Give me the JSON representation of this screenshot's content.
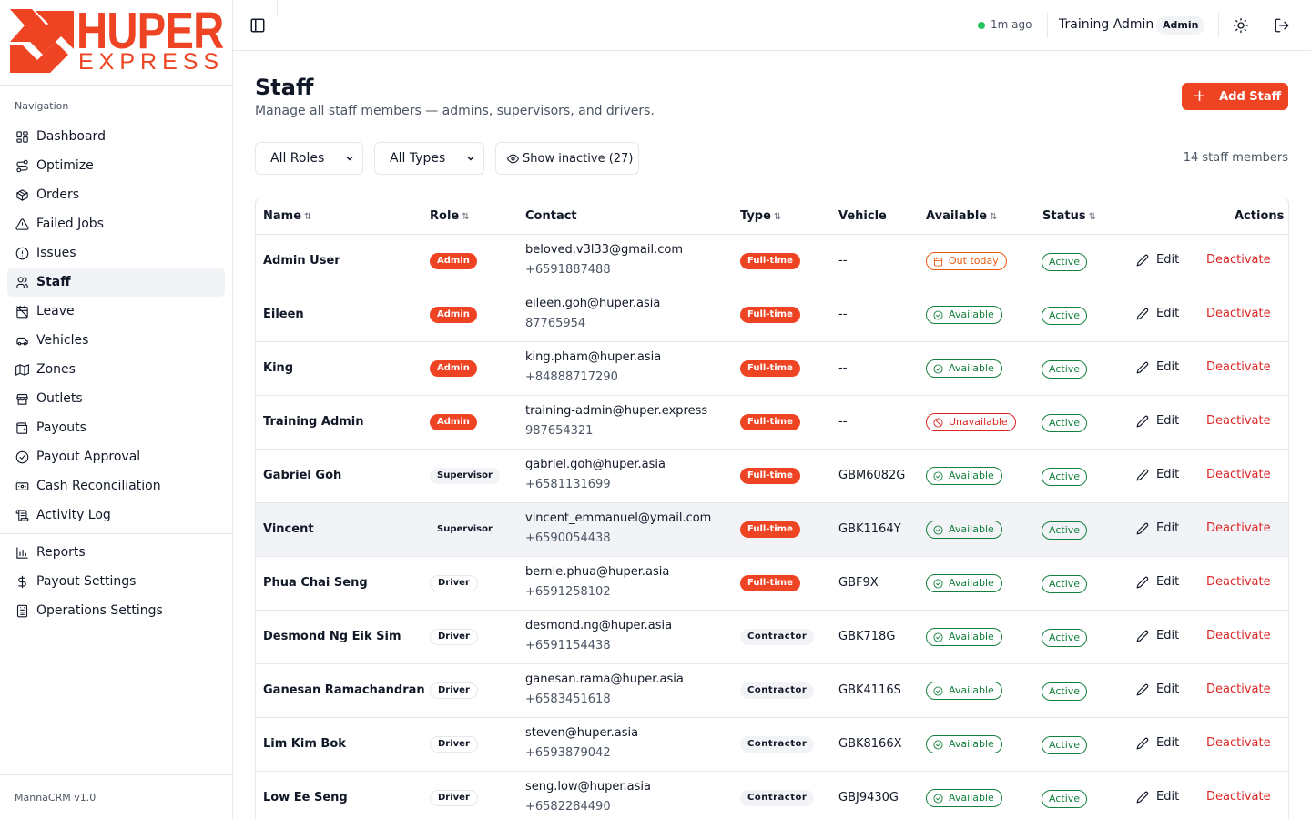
{
  "brand": {
    "logo_text_top": "HUPER",
    "logo_text_bottom": "EXPRESS",
    "accent_color": "#ee4423"
  },
  "sidebar": {
    "nav_title": "Navigation",
    "items": [
      {
        "label": "Dashboard",
        "icon": "layout-dashboard-icon"
      },
      {
        "label": "Optimize",
        "icon": "route-icon"
      },
      {
        "label": "Orders",
        "icon": "package-icon"
      },
      {
        "label": "Failed Jobs",
        "icon": "alert-triangle-icon"
      },
      {
        "label": "Issues",
        "icon": "alert-circle-icon"
      },
      {
        "label": "Staff",
        "icon": "users-icon",
        "active": true
      },
      {
        "label": "Leave",
        "icon": "calendar-off-icon"
      },
      {
        "label": "Vehicles",
        "icon": "car-icon"
      },
      {
        "label": "Zones",
        "icon": "map-icon"
      },
      {
        "label": "Outlets",
        "icon": "store-icon"
      },
      {
        "label": "Payouts",
        "icon": "wallet-icon"
      },
      {
        "label": "Payout Approval",
        "icon": "check-circle-icon"
      },
      {
        "label": "Cash Reconciliation",
        "icon": "banknote-icon"
      },
      {
        "label": "Activity Log",
        "icon": "scroll-icon"
      }
    ],
    "items2": [
      {
        "label": "Reports",
        "icon": "bar-chart-icon"
      },
      {
        "label": "Payout Settings",
        "icon": "dollar-icon"
      },
      {
        "label": "Operations Settings",
        "icon": "building-icon"
      }
    ],
    "footer": "MannaCRM v1.0"
  },
  "header": {
    "sync_status": "1m ago",
    "user_name": "Training Admin",
    "user_role": "Admin"
  },
  "page": {
    "title": "Staff",
    "subtitle": "Manage all staff members — admins, supervisors, and drivers.",
    "add_button": "Add Staff"
  },
  "filters": {
    "role": "All Roles",
    "type": "All Types",
    "show_inactive": "Show inactive (27)",
    "count": "14 staff members"
  },
  "table": {
    "columns": {
      "name": "Name",
      "role": "Role",
      "contact": "Contact",
      "type": "Type",
      "vehicle": "Vehicle",
      "available": "Available",
      "status": "Status",
      "actions": "Actions"
    },
    "edit_label": "Edit",
    "deactivate_label": "Deactivate",
    "rows": [
      {
        "name": "Admin User",
        "role": "Admin",
        "email": "beloved.v3l33@gmail.com",
        "phone": "+6591887488",
        "type": "Full-time",
        "vehicle": "--",
        "available": "Out today",
        "status": "Active"
      },
      {
        "name": "Eileen",
        "role": "Admin",
        "email": "eileen.goh@huper.asia",
        "phone": "87765954",
        "type": "Full-time",
        "vehicle": "--",
        "available": "Available",
        "status": "Active"
      },
      {
        "name": "King",
        "role": "Admin",
        "email": "king.pham@huper.asia",
        "phone": "+84888717290",
        "type": "Full-time",
        "vehicle": "--",
        "available": "Available",
        "status": "Active"
      },
      {
        "name": "Training Admin",
        "role": "Admin",
        "email": "training-admin@huper.express",
        "phone": "987654321",
        "type": "Full-time",
        "vehicle": "--",
        "available": "Unavailable",
        "status": "Active"
      },
      {
        "name": "Gabriel Goh",
        "role": "Supervisor",
        "email": "gabriel.goh@huper.asia",
        "phone": "+6581131699",
        "type": "Full-time",
        "vehicle": "GBM6082G",
        "available": "Available",
        "status": "Active"
      },
      {
        "name": "Vincent",
        "role": "Supervisor",
        "email": "vincent_emmanuel@ymail.com",
        "phone": "+6590054438",
        "type": "Full-time",
        "vehicle": "GBK1164Y",
        "available": "Available",
        "status": "Active"
      },
      {
        "name": "Phua Chai Seng",
        "role": "Driver",
        "email": "bernie.phua@huper.asia",
        "phone": "+6591258102",
        "type": "Full-time",
        "vehicle": "GBF9X",
        "available": "Available",
        "status": "Active"
      },
      {
        "name": "Desmond Ng Eik Sim",
        "role": "Driver",
        "email": "desmond.ng@huper.asia",
        "phone": "+6591154438",
        "type": "Contractor",
        "vehicle": "GBK718G",
        "available": "Available",
        "status": "Active"
      },
      {
        "name": "Ganesan Ramachandran",
        "role": "Driver",
        "email": "ganesan.rama@huper.asia",
        "phone": "+6583451618",
        "type": "Contractor",
        "vehicle": "GBK4116S",
        "available": "Available",
        "status": "Active"
      },
      {
        "name": "Lim Kim Bok",
        "role": "Driver",
        "email": "steven@huper.asia",
        "phone": "+6593879042",
        "type": "Contractor",
        "vehicle": "GBK8166X",
        "available": "Available",
        "status": "Active"
      },
      {
        "name": "Low Ee Seng",
        "role": "Driver",
        "email": "seng.low@huper.asia",
        "phone": "+6582284490",
        "type": "Contractor",
        "vehicle": "GBJ9430G",
        "available": "Available",
        "status": "Active"
      }
    ]
  }
}
